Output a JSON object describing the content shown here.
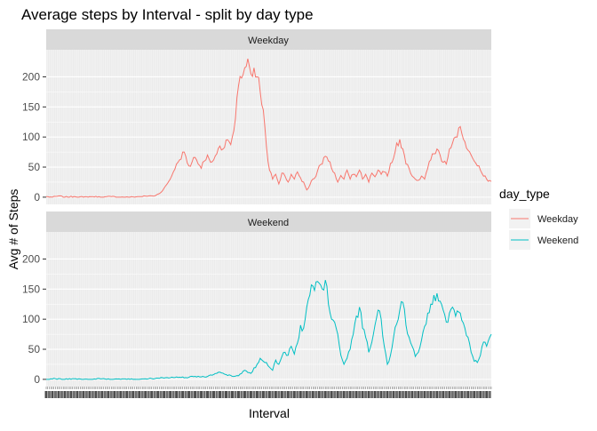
{
  "chart_data": {
    "type": "line",
    "title": "Average steps by Interval - split by day type",
    "xlabel": "Interval",
    "ylabel": "Avg # of Steps",
    "ylim": [
      -12,
      245
    ],
    "yticks": [
      0,
      50,
      100,
      150,
      200
    ],
    "x_range": [
      0,
      287
    ],
    "x_tick_labels_note": "288 interval tick labels, overplotted and illegible",
    "grid": true,
    "facets": [
      "Weekday",
      "Weekend"
    ],
    "legend": {
      "title": "day_type",
      "position": "right",
      "entries": [
        {
          "label": "Weekday",
          "color": "#F8766D"
        },
        {
          "label": "Weekend",
          "color": "#00BFC4"
        }
      ]
    },
    "series": [
      {
        "name": "Weekday",
        "color": "#F8766D",
        "facet": "Weekday",
        "keypoints": [
          [
            0,
            1
          ],
          [
            4,
            0
          ],
          [
            8,
            2
          ],
          [
            12,
            0
          ],
          [
            18,
            1
          ],
          [
            24,
            0
          ],
          [
            30,
            1
          ],
          [
            36,
            0
          ],
          [
            42,
            1
          ],
          [
            48,
            0
          ],
          [
            54,
            0
          ],
          [
            60,
            1
          ],
          [
            66,
            2
          ],
          [
            70,
            2
          ],
          [
            72,
            5
          ],
          [
            74,
            8
          ],
          [
            76,
            15
          ],
          [
            78,
            22
          ],
          [
            80,
            30
          ],
          [
            82,
            42
          ],
          [
            84,
            55
          ],
          [
            86,
            62
          ],
          [
            88,
            75
          ],
          [
            90,
            68
          ],
          [
            92,
            52
          ],
          [
            94,
            58
          ],
          [
            96,
            66
          ],
          [
            98,
            55
          ],
          [
            100,
            48
          ],
          [
            102,
            60
          ],
          [
            104,
            70
          ],
          [
            106,
            58
          ],
          [
            108,
            62
          ],
          [
            110,
            72
          ],
          [
            112,
            85
          ],
          [
            114,
            80
          ],
          [
            116,
            95
          ],
          [
            118,
            92
          ],
          [
            120,
            100
          ],
          [
            122,
            130
          ],
          [
            124,
            185
          ],
          [
            126,
            198
          ],
          [
            128,
            215
          ],
          [
            130,
            230
          ],
          [
            132,
            205
          ],
          [
            134,
            215
          ],
          [
            136,
            200
          ],
          [
            138,
            175
          ],
          [
            140,
            145
          ],
          [
            142,
            85
          ],
          [
            144,
            45
          ],
          [
            146,
            30
          ],
          [
            148,
            38
          ],
          [
            150,
            22
          ],
          [
            152,
            40
          ],
          [
            154,
            35
          ],
          [
            156,
            25
          ],
          [
            158,
            38
          ],
          [
            160,
            30
          ],
          [
            162,
            42
          ],
          [
            164,
            32
          ],
          [
            166,
            25
          ],
          [
            168,
            12
          ],
          [
            170,
            20
          ],
          [
            172,
            30
          ],
          [
            174,
            35
          ],
          [
            176,
            52
          ],
          [
            178,
            55
          ],
          [
            180,
            68
          ],
          [
            182,
            60
          ],
          [
            184,
            48
          ],
          [
            186,
            40
          ],
          [
            188,
            25
          ],
          [
            190,
            36
          ],
          [
            192,
            30
          ],
          [
            194,
            45
          ],
          [
            196,
            30
          ],
          [
            198,
            38
          ],
          [
            200,
            34
          ],
          [
            202,
            45
          ],
          [
            204,
            30
          ],
          [
            206,
            38
          ],
          [
            208,
            25
          ],
          [
            210,
            40
          ],
          [
            212,
            34
          ],
          [
            214,
            45
          ],
          [
            216,
            38
          ],
          [
            218,
            42
          ],
          [
            220,
            35
          ],
          [
            222,
            56
          ],
          [
            224,
            65
          ],
          [
            226,
            90
          ],
          [
            228,
            96
          ],
          [
            230,
            80
          ],
          [
            232,
            55
          ],
          [
            234,
            48
          ],
          [
            236,
            35
          ],
          [
            238,
            30
          ],
          [
            240,
            28
          ],
          [
            242,
            35
          ],
          [
            244,
            30
          ],
          [
            246,
            48
          ],
          [
            248,
            62
          ],
          [
            250,
            72
          ],
          [
            252,
            80
          ],
          [
            254,
            70
          ],
          [
            256,
            58
          ],
          [
            258,
            55
          ],
          [
            260,
            80
          ],
          [
            262,
            90
          ],
          [
            264,
            100
          ],
          [
            266,
            115
          ],
          [
            268,
            106
          ],
          [
            270,
            92
          ],
          [
            272,
            78
          ],
          [
            274,
            70
          ],
          [
            276,
            60
          ],
          [
            278,
            52
          ],
          [
            280,
            45
          ],
          [
            282,
            35
          ],
          [
            284,
            30
          ],
          [
            287,
            26
          ]
        ]
      },
      {
        "name": "Weekend",
        "color": "#00BFC4",
        "facet": "Weekend",
        "keypoints": [
          [
            0,
            0
          ],
          [
            6,
            1
          ],
          [
            12,
            0
          ],
          [
            18,
            1
          ],
          [
            24,
            0
          ],
          [
            30,
            0
          ],
          [
            36,
            1
          ],
          [
            42,
            0
          ],
          [
            48,
            0
          ],
          [
            54,
            0
          ],
          [
            60,
            0
          ],
          [
            66,
            1
          ],
          [
            72,
            2
          ],
          [
            78,
            3
          ],
          [
            84,
            4
          ],
          [
            90,
            3
          ],
          [
            96,
            5
          ],
          [
            102,
            4
          ],
          [
            108,
            8
          ],
          [
            112,
            12
          ],
          [
            116,
            8
          ],
          [
            120,
            5
          ],
          [
            124,
            6
          ],
          [
            128,
            15
          ],
          [
            132,
            10
          ],
          [
            136,
            25
          ],
          [
            138,
            35
          ],
          [
            140,
            30
          ],
          [
            142,
            28
          ],
          [
            144,
            20
          ],
          [
            146,
            15
          ],
          [
            148,
            32
          ],
          [
            150,
            25
          ],
          [
            152,
            38
          ],
          [
            154,
            45
          ],
          [
            156,
            40
          ],
          [
            158,
            55
          ],
          [
            160,
            42
          ],
          [
            162,
            60
          ],
          [
            164,
            90
          ],
          [
            166,
            85
          ],
          [
            168,
            120
          ],
          [
            170,
            140
          ],
          [
            172,
            155
          ],
          [
            174,
            162
          ],
          [
            176,
            160
          ],
          [
            178,
            150
          ],
          [
            180,
            165
          ],
          [
            182,
            125
          ],
          [
            184,
            100
          ],
          [
            186,
            95
          ],
          [
            188,
            75
          ],
          [
            190,
            40
          ],
          [
            192,
            25
          ],
          [
            194,
            35
          ],
          [
            196,
            50
          ],
          [
            198,
            75
          ],
          [
            200,
            105
          ],
          [
            202,
            120
          ],
          [
            204,
            85
          ],
          [
            206,
            70
          ],
          [
            208,
            45
          ],
          [
            210,
            62
          ],
          [
            212,
            90
          ],
          [
            214,
            115
          ],
          [
            216,
            100
          ],
          [
            218,
            55
          ],
          [
            220,
            25
          ],
          [
            222,
            40
          ],
          [
            224,
            70
          ],
          [
            226,
            92
          ],
          [
            228,
            115
          ],
          [
            230,
            128
          ],
          [
            232,
            90
          ],
          [
            234,
            70
          ],
          [
            236,
            55
          ],
          [
            238,
            38
          ],
          [
            240,
            45
          ],
          [
            242,
            65
          ],
          [
            244,
            88
          ],
          [
            246,
            110
          ],
          [
            248,
            125
          ],
          [
            250,
            140
          ],
          [
            252,
            143
          ],
          [
            254,
            130
          ],
          [
            256,
            115
          ],
          [
            258,
            95
          ],
          [
            260,
            110
          ],
          [
            262,
            120
          ],
          [
            264,
            105
          ],
          [
            266,
            112
          ],
          [
            268,
            98
          ],
          [
            270,
            85
          ],
          [
            272,
            70
          ],
          [
            274,
            45
          ],
          [
            276,
            30
          ],
          [
            278,
            28
          ],
          [
            280,
            40
          ],
          [
            282,
            62
          ],
          [
            284,
            55
          ],
          [
            286,
            70
          ],
          [
            287,
            75
          ]
        ]
      }
    ]
  }
}
